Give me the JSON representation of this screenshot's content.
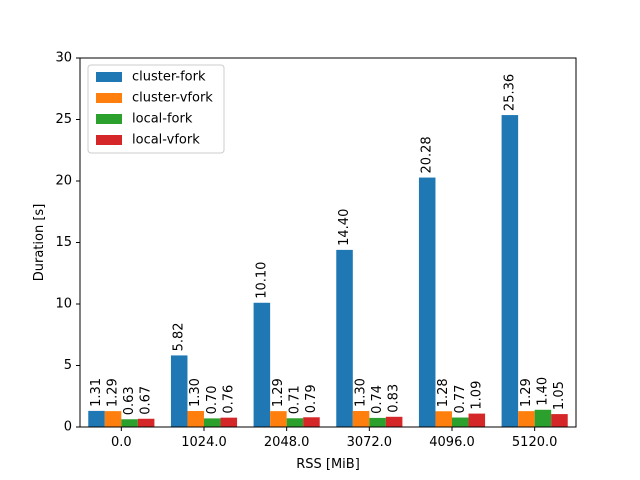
{
  "chart_data": {
    "type": "bar",
    "title": "",
    "xlabel": "RSS [MiB]",
    "ylabel": "Duration [s]",
    "categories": [
      "0.0",
      "1024.0",
      "2048.0",
      "3072.0",
      "4096.0",
      "5120.0"
    ],
    "ylim": [
      0,
      30
    ],
    "yticks": [
      0,
      5,
      10,
      15,
      20,
      25,
      30
    ],
    "grid": false,
    "legend_position": "top-left",
    "series": [
      {
        "name": "cluster-fork",
        "color": "#1f77b4",
        "values": [
          1.31,
          5.82,
          10.1,
          14.4,
          20.28,
          25.36
        ],
        "labels": [
          "1.31",
          "5.82",
          "10.10",
          "14.40",
          "20.28",
          "25.36"
        ]
      },
      {
        "name": "cluster-vfork",
        "color": "#ff7f0e",
        "values": [
          1.29,
          1.3,
          1.29,
          1.3,
          1.28,
          1.29
        ],
        "labels": [
          "1.29",
          "1.30",
          "1.29",
          "1.30",
          "1.28",
          "1.29"
        ]
      },
      {
        "name": "local-fork",
        "color": "#2ca02c",
        "values": [
          0.63,
          0.7,
          0.71,
          0.74,
          0.77,
          1.4
        ],
        "labels": [
          "0.63",
          "0.70",
          "0.71",
          "0.74",
          "0.77",
          "1.40"
        ]
      },
      {
        "name": "local-vfork",
        "color": "#d62728",
        "values": [
          0.67,
          0.76,
          0.79,
          0.83,
          1.09,
          1.05
        ],
        "labels": [
          "0.67",
          "0.76",
          "0.79",
          "0.83",
          "1.09",
          "1.05"
        ]
      }
    ]
  }
}
